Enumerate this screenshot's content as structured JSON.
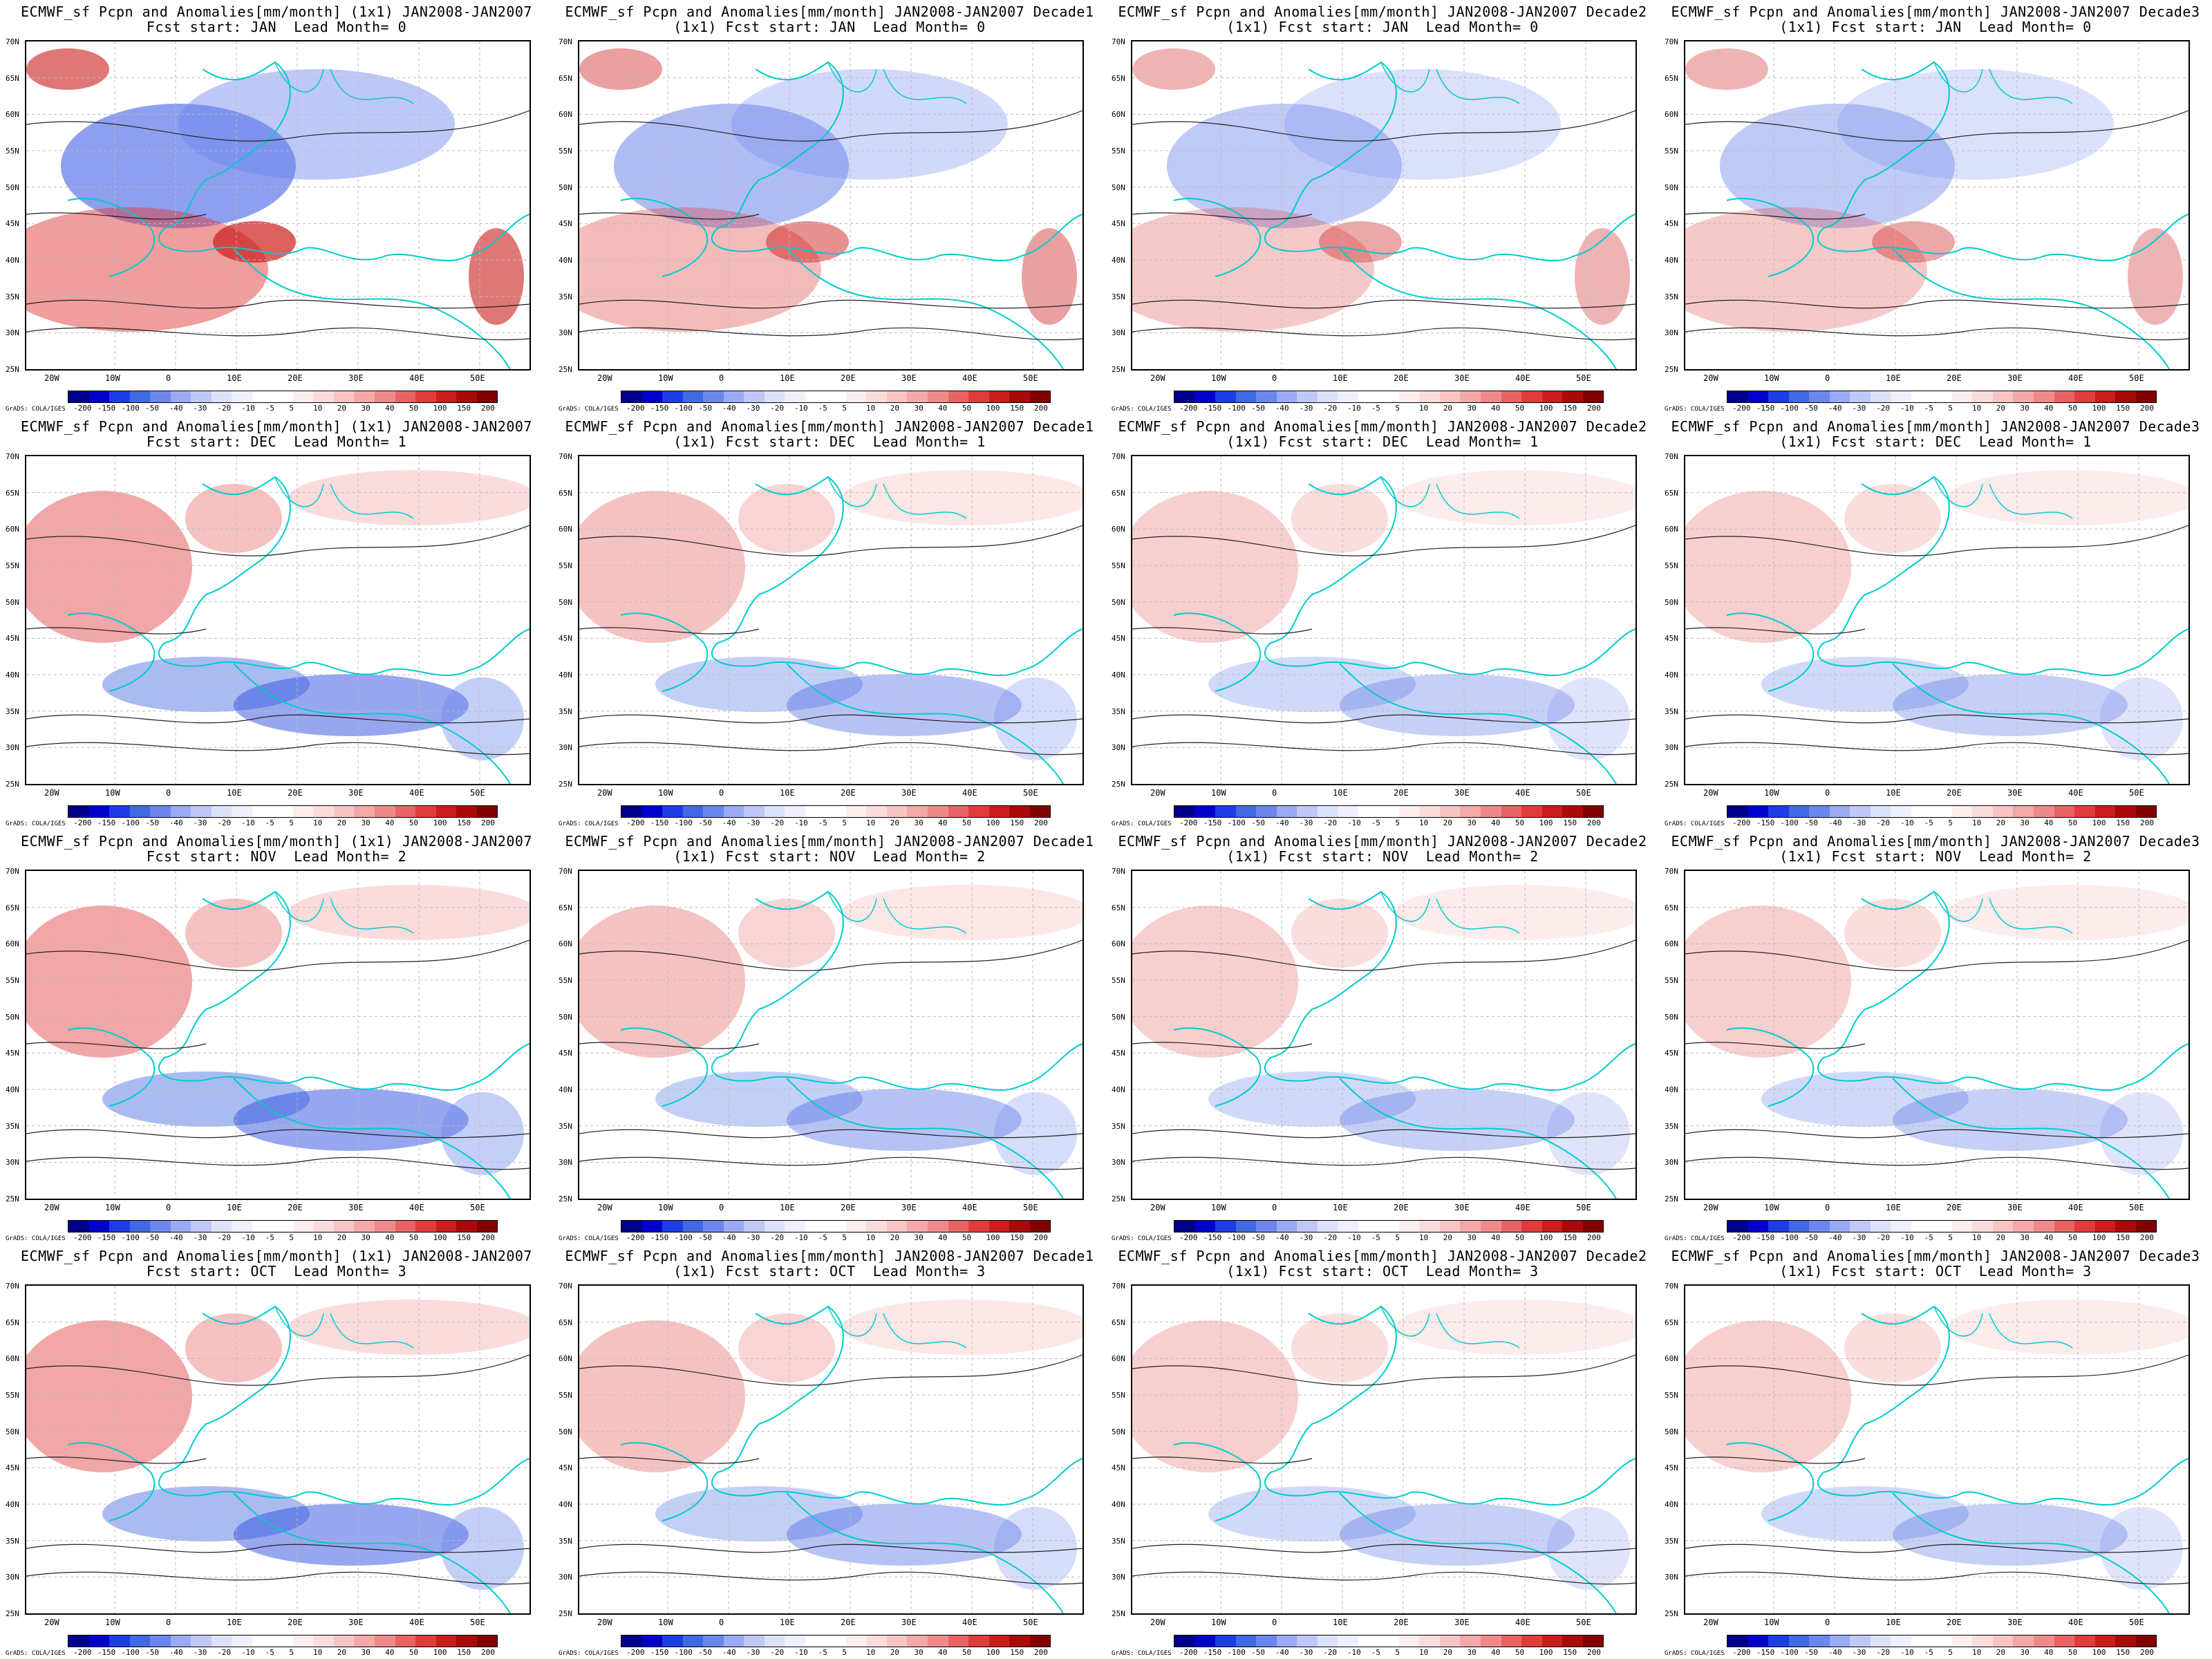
{
  "colorbar": {
    "colors": [
      "#00008b",
      "#0000cd",
      "#1e3ce6",
      "#4169e1",
      "#6c86ee",
      "#9aaaf4",
      "#c0c8f8",
      "#dde2fb",
      "#eef0fd",
      "#ffffff",
      "#ffffff",
      "#fdeeee",
      "#fbdcdc",
      "#f8c4c4",
      "#f4a8a8",
      "#ef8a8a",
      "#e86464",
      "#e03c3c",
      "#cc1c1c",
      "#a80a0a",
      "#800000"
    ],
    "labels": [
      "-200",
      "-150",
      "-100",
      "-50",
      "-40",
      "-30",
      "-20",
      "-10",
      "-5",
      "5",
      "10",
      "20",
      "30",
      "40",
      "50",
      "100",
      "150",
      "200"
    ]
  },
  "lat_labels": [
    "70N",
    "65N",
    "60N",
    "55N",
    "50N",
    "45N",
    "40N",
    "35N",
    "30N",
    "25N"
  ],
  "lon_labels": [
    "20W",
    "10W",
    "0",
    "10E",
    "20E",
    "30E",
    "40E",
    "50E"
  ],
  "credit": "GrADS: COLA/IGES",
  "panels": [
    {
      "t1": "ECMWF_sf Pcpn and Anomalies[mm/month] (1x1) JAN2008-JAN2007",
      "t2": "Fcst start: JAN  Lead Month= 0"
    },
    {
      "t1": "ECMWF_sf Pcpn and Anomalies[mm/month] JAN2008-JAN2007 Decade1",
      "t2": "(1x1) Fcst start: JAN  Lead Month= 0"
    },
    {
      "t1": "ECMWF_sf Pcpn and Anomalies[mm/month] JAN2008-JAN2007 Decade2",
      "t2": "(1x1) Fcst start: JAN  Lead Month= 0"
    },
    {
      "t1": "ECMWF_sf Pcpn and Anomalies[mm/month] JAN2008-JAN2007 Decade3",
      "t2": "(1x1) Fcst start: JAN  Lead Month= 0"
    },
    {
      "t1": "ECMWF_sf Pcpn and Anomalies[mm/month] (1x1) JAN2008-JAN2007",
      "t2": "Fcst start: DEC  Lead Month= 1"
    },
    {
      "t1": "ECMWF_sf Pcpn and Anomalies[mm/month] JAN2008-JAN2007 Decade1",
      "t2": "(1x1) Fcst start: DEC  Lead Month= 1"
    },
    {
      "t1": "ECMWF_sf Pcpn and Anomalies[mm/month] JAN2008-JAN2007 Decade2",
      "t2": "(1x1) Fcst start: DEC  Lead Month= 1"
    },
    {
      "t1": "ECMWF_sf Pcpn and Anomalies[mm/month] JAN2008-JAN2007 Decade3",
      "t2": "(1x1) Fcst start: DEC  Lead Month= 1"
    },
    {
      "t1": "ECMWF_sf Pcpn and Anomalies[mm/month] (1x1) JAN2008-JAN2007",
      "t2": "Fcst start: NOV  Lead Month= 2"
    },
    {
      "t1": "ECMWF_sf Pcpn and Anomalies[mm/month] JAN2008-JAN2007 Decade1",
      "t2": "(1x1) Fcst start: NOV  Lead Month= 2"
    },
    {
      "t1": "ECMWF_sf Pcpn and Anomalies[mm/month] JAN2008-JAN2007 Decade2",
      "t2": "(1x1) Fcst start: NOV  Lead Month= 2"
    },
    {
      "t1": "ECMWF_sf Pcpn and Anomalies[mm/month] JAN2008-JAN2007 Decade3",
      "t2": "(1x1) Fcst start: NOV  Lead Month= 2"
    },
    {
      "t1": "ECMWF_sf Pcpn and Anomalies[mm/month] (1x1) JAN2008-JAN2007",
      "t2": "Fcst start: OCT  Lead Month= 3"
    },
    {
      "t1": "ECMWF_sf Pcpn and Anomalies[mm/month] JAN2008-JAN2007 Decade1",
      "t2": "(1x1) Fcst start: OCT  Lead Month= 3"
    },
    {
      "t1": "ECMWF_sf Pcpn and Anomalies[mm/month] JAN2008-JAN2007 Decade2",
      "t2": "(1x1) Fcst start: OCT  Lead Month= 3"
    },
    {
      "t1": "ECMWF_sf Pcpn and Anomalies[mm/month] JAN2008-JAN2007 Decade3",
      "t2": "(1x1) Fcst start: OCT  Lead Month= 3"
    }
  ]
}
